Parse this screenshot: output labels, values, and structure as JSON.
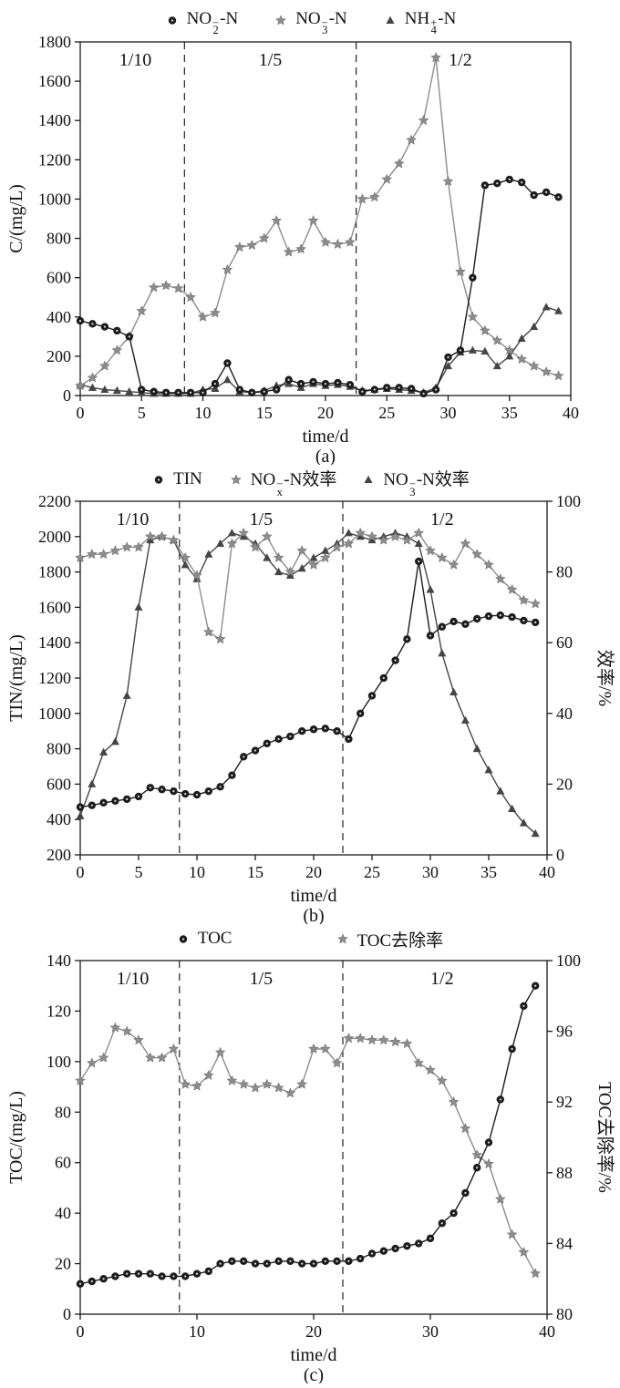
{
  "figure": {
    "background": "#ffffff"
  },
  "chart_data": [
    {
      "id": "a",
      "type": "line",
      "sublabel": "(a)",
      "xlabel": "time/d",
      "ylabel_left": "C/(mg/L)",
      "grid": false,
      "x_start": 0,
      "x_step": 1,
      "axes": {
        "x": {
          "min": 0,
          "max": 40,
          "ticks": [
            0,
            5,
            10,
            15,
            20,
            25,
            30,
            35,
            40
          ]
        },
        "left": {
          "min": 0,
          "max": 1800,
          "ticks": [
            0,
            200,
            400,
            600,
            800,
            1000,
            1200,
            1400,
            1600,
            1800
          ]
        }
      },
      "dividers": [
        8.5,
        22.5
      ],
      "phases": [
        {
          "label": "1/10",
          "x": 4.5
        },
        {
          "label": "1/5",
          "x": 15.5
        },
        {
          "label": "1/2",
          "x": 31
        }
      ],
      "series": [
        {
          "key": "NO2-N",
          "label": "NO₂⁻-N",
          "label_parts": {
            "text1": "NO",
            "sup": "−",
            "sub": "2",
            "text2": "-N"
          },
          "marker": "circle",
          "axis": "left",
          "color": "#1c1c1c",
          "values": [
            380,
            365,
            350,
            330,
            300,
            30,
            20,
            15,
            15,
            15,
            15,
            60,
            165,
            30,
            15,
            20,
            30,
            80,
            60,
            70,
            60,
            65,
            55,
            20,
            30,
            40,
            40,
            35,
            10,
            30,
            195,
            230,
            600,
            1070,
            1080,
            1100,
            1085,
            1020,
            1035,
            1010
          ]
        },
        {
          "key": "NO3-N",
          "label": "NO₃⁻-N",
          "label_parts": {
            "text1": "NO",
            "sup": "−",
            "sub": "3",
            "text2": "-N"
          },
          "marker": "star",
          "axis": "left",
          "color": "#8c8c8c",
          "values": [
            50,
            90,
            150,
            230,
            300,
            430,
            550,
            560,
            545,
            500,
            400,
            420,
            640,
            755,
            765,
            800,
            890,
            730,
            745,
            890,
            780,
            770,
            780,
            1000,
            1010,
            1100,
            1180,
            1300,
            1400,
            1720,
            1090,
            630,
            400,
            330,
            280,
            230,
            185,
            150,
            120,
            100
          ]
        },
        {
          "key": "NH4-N",
          "label": "NH₄⁺-N",
          "label_parts": {
            "text1": "NH",
            "sup": "+",
            "sub": "4",
            "text2": "-N"
          },
          "marker": "triangle",
          "axis": "left",
          "color": "#454545",
          "values": [
            55,
            40,
            30,
            25,
            20,
            15,
            10,
            10,
            10,
            10,
            30,
            35,
            80,
            20,
            15,
            25,
            50,
            60,
            40,
            60,
            50,
            55,
            45,
            25,
            30,
            35,
            30,
            25,
            15,
            40,
            150,
            220,
            230,
            225,
            150,
            200,
            290,
            350,
            450,
            430
          ]
        }
      ]
    },
    {
      "id": "b",
      "type": "line",
      "sublabel": "(b)",
      "xlabel": "time/d",
      "ylabel_left": "TIN/(mg/L)",
      "ylabel_right": "效率/%",
      "grid": false,
      "x_start": 0,
      "x_step": 1,
      "axes": {
        "x": {
          "min": 0,
          "max": 40,
          "ticks": [
            0,
            5,
            10,
            15,
            20,
            25,
            30,
            35,
            40
          ]
        },
        "left": {
          "min": 200,
          "max": 2200,
          "ticks": [
            200,
            400,
            600,
            800,
            1000,
            1200,
            1400,
            1600,
            1800,
            2000,
            2200
          ]
        },
        "right": {
          "min": 0,
          "max": 100,
          "ticks": [
            0,
            20,
            40,
            60,
            80,
            100
          ]
        }
      },
      "dividers": [
        8.5,
        22.5
      ],
      "phases": [
        {
          "label": "1/10",
          "x": 4.5
        },
        {
          "label": "1/5",
          "x": 15.5
        },
        {
          "label": "1/2",
          "x": 31
        }
      ],
      "series": [
        {
          "key": "TIN",
          "label": "TIN",
          "label_parts": {
            "text1": "TIN",
            "sup": "",
            "sub": "",
            "text2": ""
          },
          "marker": "circle",
          "axis": "left",
          "color": "#1c1c1c",
          "values": [
            470,
            480,
            495,
            505,
            515,
            530,
            580,
            570,
            560,
            545,
            540,
            560,
            585,
            650,
            755,
            790,
            830,
            855,
            870,
            900,
            910,
            915,
            900,
            855,
            1000,
            1100,
            1200,
            1300,
            1420,
            1860,
            1440,
            1490,
            1520,
            1505,
            1535,
            1550,
            1555,
            1545,
            1525,
            1515
          ]
        },
        {
          "key": "NOx-N-efficiency",
          "label": "NOₓ⁻-N效率",
          "label_parts": {
            "text1": "NO",
            "sup": "−",
            "sub": "x",
            "text2": "-N效率"
          },
          "marker": "star",
          "axis": "right",
          "color": "#8c8c8c",
          "values": [
            84,
            85,
            85,
            86,
            87,
            87,
            90,
            90,
            89,
            84,
            79,
            63,
            61,
            88,
            91,
            87,
            90,
            84,
            80,
            86,
            82,
            84,
            87,
            88,
            91,
            90,
            89,
            90,
            89,
            91,
            86,
            84,
            82,
            88,
            85,
            82,
            78,
            75,
            72,
            71
          ]
        },
        {
          "key": "NO3-N-efficiency",
          "label": "NO₃⁻-N效率",
          "label_parts": {
            "text1": "NO",
            "sup": "−",
            "sub": "3",
            "text2": "-N效率"
          },
          "marker": "triangle",
          "axis": "right",
          "color": "#454545",
          "values": [
            11,
            20,
            29,
            32,
            45,
            70,
            89,
            90,
            89,
            82,
            78,
            85,
            88,
            91,
            90,
            88,
            84,
            80,
            79,
            81,
            84,
            86,
            88,
            91,
            90,
            89,
            90,
            91,
            90,
            88,
            75,
            57,
            46,
            38,
            30,
            24,
            18,
            13,
            9,
            6
          ]
        }
      ]
    },
    {
      "id": "c",
      "type": "line",
      "sublabel": "(c)",
      "xlabel": "time/d",
      "ylabel_left": "TOC/(mg/L)",
      "ylabel_right": "TOC去除率/%",
      "grid": false,
      "x_start": 0,
      "x_step": 1,
      "axes": {
        "x": {
          "min": 0,
          "max": 40,
          "ticks": [
            0,
            10,
            20,
            30,
            40
          ]
        },
        "left": {
          "min": 0,
          "max": 140,
          "ticks": [
            0,
            20,
            40,
            60,
            80,
            100,
            120,
            140
          ]
        },
        "right": {
          "min": 80,
          "max": 100,
          "ticks": [
            80,
            84,
            88,
            92,
            96,
            100
          ]
        }
      },
      "dividers": [
        8.5,
        22.5
      ],
      "phases": [
        {
          "label": "1/10",
          "x": 4.5
        },
        {
          "label": "1/5",
          "x": 15.5
        },
        {
          "label": "1/2",
          "x": 31
        }
      ],
      "series": [
        {
          "key": "TOC",
          "label": "TOC",
          "label_parts": {
            "text1": "TOC",
            "sup": "",
            "sub": "",
            "text2": ""
          },
          "marker": "circle",
          "axis": "left",
          "color": "#1c1c1c",
          "values": [
            12,
            13,
            14,
            15,
            16,
            16,
            16,
            15,
            15,
            15,
            16,
            17,
            20,
            21,
            21,
            20,
            20,
            21,
            21,
            20,
            20,
            21,
            21,
            21,
            22,
            24,
            25,
            26,
            27,
            28,
            30,
            36,
            40,
            48,
            58,
            68,
            85,
            105,
            122,
            130
          ]
        },
        {
          "key": "TOC-removal-rate",
          "label": "TOC去除率",
          "label_parts": {
            "text1": "TOC去除率",
            "sup": "",
            "sub": "",
            "text2": ""
          },
          "marker": "star",
          "axis": "right",
          "color": "#8c8c8c",
          "values": [
            93.2,
            94.2,
            94.5,
            96.2,
            96,
            95.5,
            94.5,
            94.5,
            95,
            93,
            92.9,
            93.5,
            94.8,
            93.2,
            93,
            92.8,
            93,
            92.8,
            92.5,
            93,
            95,
            95,
            94.2,
            95.6,
            95.6,
            95.5,
            95.5,
            95.4,
            95.3,
            94.2,
            93.8,
            93.2,
            92,
            90.5,
            89,
            88.5,
            86.5,
            84.5,
            83.5,
            82.3
          ]
        }
      ]
    }
  ]
}
